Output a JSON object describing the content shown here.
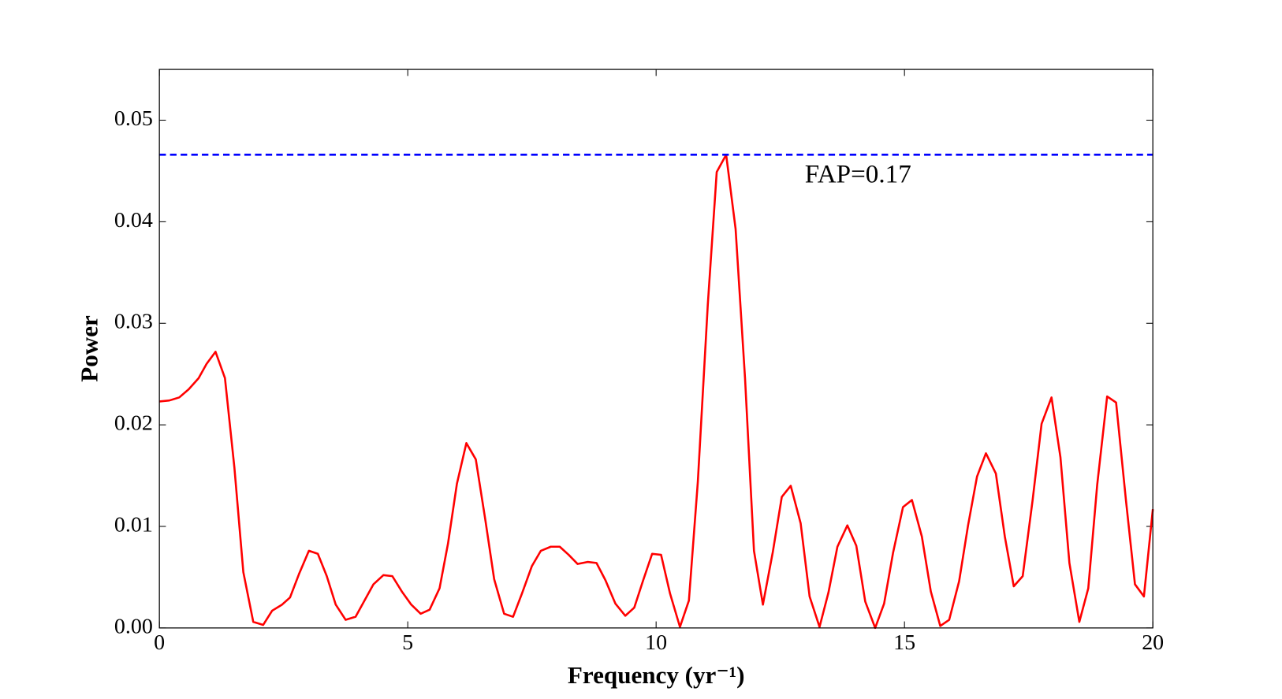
{
  "chart_data": {
    "type": "line",
    "xlabel": "Frequency (yr⁻¹)",
    "ylabel": "Power",
    "xlim": [
      0,
      20
    ],
    "ylim": [
      0,
      0.055
    ],
    "xticks": [
      0,
      5,
      10,
      15,
      20
    ],
    "yticks": [
      {
        "value": 0,
        "label": "0.00"
      },
      0.01,
      0.02,
      0.03,
      0.04,
      0.05
    ],
    "x": [
      0,
      0.2,
      0.4,
      0.59,
      0.79,
      0.95,
      1.13,
      1.32,
      1.51,
      1.69,
      1.89,
      2.09,
      2.27,
      2.47,
      2.63,
      2.81,
      3.01,
      3.19,
      3.37,
      3.55,
      3.75,
      3.95,
      4.13,
      4.31,
      4.51,
      4.69,
      4.88,
      5.07,
      5.26,
      5.44,
      5.64,
      5.81,
      5.99,
      6.18,
      6.37,
      6.56,
      6.74,
      6.94,
      7.12,
      7.3,
      7.5,
      7.68,
      7.88,
      8.06,
      8.24,
      8.42,
      8.62,
      8.8,
      8.98,
      9.18,
      9.38,
      9.56,
      9.74,
      9.92,
      10.1,
      10.28,
      10.48,
      10.66,
      10.84,
      11.04,
      11.22,
      11.41,
      11.6,
      11.79,
      11.97,
      12.15,
      12.35,
      12.53,
      12.71,
      12.91,
      13.09,
      13.29,
      13.47,
      13.65,
      13.85,
      14.03,
      14.21,
      14.41,
      14.59,
      14.77,
      14.97,
      15.15,
      15.35,
      15.53,
      15.72,
      15.9,
      16.1,
      16.28,
      16.46,
      16.64,
      16.84,
      17.02,
      17.2,
      17.38,
      17.58,
      17.76,
      17.96,
      18.14,
      18.32,
      18.52,
      18.7,
      18.88,
      19.08,
      19.26,
      19.46,
      19.64,
      19.82,
      20
    ],
    "series": [
      {
        "name": "Power",
        "color": "#ff0000",
        "values": [
          0.0223,
          0.0224,
          0.0227,
          0.0235,
          0.0246,
          0.026,
          0.0272,
          0.0246,
          0.0158,
          0.0055,
          0.0006,
          0.0003,
          0.0017,
          0.0023,
          0.003,
          0.0053,
          0.0076,
          0.0073,
          0.0051,
          0.0023,
          0.0008,
          0.0011,
          0.0027,
          0.0043,
          0.0052,
          0.0051,
          0.0036,
          0.0023,
          0.0014,
          0.0018,
          0.0039,
          0.0083,
          0.0142,
          0.0182,
          0.0166,
          0.0107,
          0.0048,
          0.0014,
          0.0011,
          0.0034,
          0.0061,
          0.0076,
          0.008,
          0.008,
          0.0072,
          0.0063,
          0.0065,
          0.0064,
          0.0047,
          0.0024,
          0.0012,
          0.002,
          0.0047,
          0.0073,
          0.0072,
          0.0034,
          0.0001,
          0.0027,
          0.0144,
          0.0318,
          0.0449,
          0.0466,
          0.0393,
          0.0246,
          0.0076,
          0.0023,
          0.0075,
          0.0129,
          0.014,
          0.0103,
          0.0031,
          0.0001,
          0.0035,
          0.008,
          0.0101,
          0.0081,
          0.0026,
          0,
          0.0024,
          0.0074,
          0.0119,
          0.0126,
          0.009,
          0.0036,
          0.0002,
          0.0008,
          0.0046,
          0.0101,
          0.0149,
          0.0172,
          0.0152,
          0.009,
          0.0041,
          0.0051,
          0.0126,
          0.0201,
          0.0227,
          0.0168,
          0.0064,
          0.0006,
          0.0039,
          0.0141,
          0.0228,
          0.0222,
          0.0125,
          0.0043,
          0.0031,
          0.0117
        ]
      }
    ],
    "hline": {
      "value": 0.0466,
      "color": "#0000ff",
      "style": "dashed",
      "label": "FAP=0.17"
    }
  }
}
